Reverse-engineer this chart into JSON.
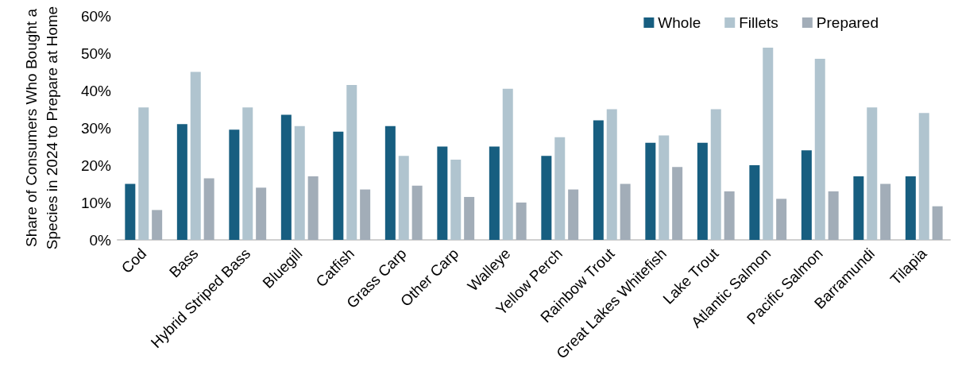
{
  "chart_data": {
    "type": "bar",
    "ylabel": "Share of Consumers Who Bought a\nSpecies in 2024 to Prepare at Home",
    "categories": [
      "Cod",
      "Bass",
      "Hybrid Striped Bass",
      "Bluegill",
      "Catfish",
      "Grass Carp",
      "Other Carp",
      "Walleye",
      "Yellow Perch",
      "Rainbow Trout",
      "Great Lakes Whitefish",
      "Lake Trout",
      "Atlantic Salmon",
      "Pacific Salmon",
      "Barramundi",
      "Tilapia"
    ],
    "series": [
      {
        "name": "Whole",
        "color": "#175e80",
        "values": [
          15,
          31,
          29.5,
          33.5,
          29,
          30.5,
          25,
          25,
          22.5,
          32,
          26,
          26,
          20,
          24,
          17,
          17
        ]
      },
      {
        "name": "Fillets",
        "color": "#b0c4cf",
        "values": [
          35.5,
          45,
          35.5,
          30.5,
          41.5,
          22.5,
          21.5,
          40.5,
          27.5,
          35,
          28,
          35,
          51.5,
          48.5,
          35.5,
          34
        ]
      },
      {
        "name": "Prepared",
        "color": "#a2adb8",
        "values": [
          8,
          16.5,
          14,
          17,
          13.5,
          14.5,
          11.5,
          10,
          13.5,
          15,
          19.5,
          13,
          11,
          13,
          15,
          9
        ]
      }
    ],
    "ylim": [
      0,
      60
    ],
    "yticks": [
      {
        "value": 0,
        "label": "0%"
      },
      {
        "value": 10,
        "label": "10%"
      },
      {
        "value": 20,
        "label": "20%"
      },
      {
        "value": 30,
        "label": "30%"
      },
      {
        "value": 40,
        "label": "40%"
      },
      {
        "value": 50,
        "label": "50%"
      },
      {
        "value": 60,
        "label": "60%"
      }
    ],
    "grid": false,
    "legend": "top right"
  }
}
